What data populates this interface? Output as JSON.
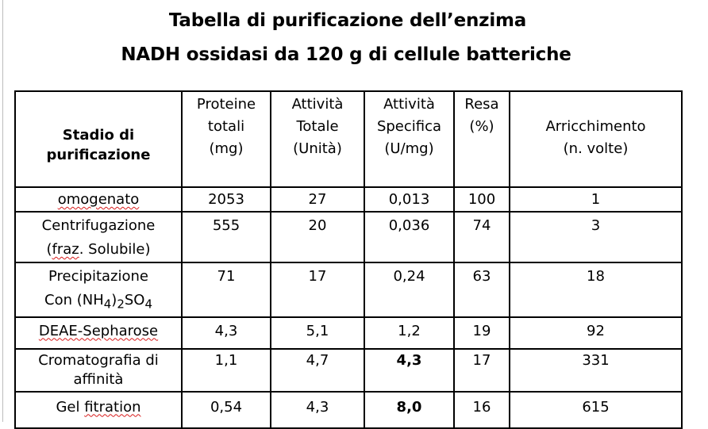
{
  "title_line1": "Tabella di purificazione dell’enzima",
  "title_line2": "NADH ossidasi da 120 g di cellule batteriche",
  "header": {
    "stage_line1": "Stadio di",
    "stage_line2": "purificazione",
    "protein_line1": "Proteine",
    "protein_line2": "totali",
    "protein_line3": "(mg)",
    "activity_line1": "Attività",
    "activity_line2": "Totale",
    "activity_line3": "(Unità)",
    "specific_line1": "Attività",
    "specific_line2": "Specifica",
    "specific_line3": "(U/mg)",
    "yield_line1": "Resa",
    "yield_line2": "(%)",
    "enrich_line1": "Arricchimento",
    "enrich_line2": "(n. volte)"
  },
  "rows": [
    {
      "stage": "omogenato",
      "protein": "2053",
      "activity": "27",
      "specific": "0,013",
      "yield": "100",
      "enrich": "1"
    },
    {
      "stage_line1": "Centrifugazione",
      "stage_line2a": "(",
      "stage_line2b": "fraz",
      "stage_line2c": ". Solubile)",
      "protein": "555",
      "activity": "20",
      "specific": "0,036",
      "yield": "74",
      "enrich": "3"
    },
    {
      "stage_line1": "Precipitazione",
      "stage_line2a": "Con (NH",
      "sub1": "4",
      "stage_line2b": ")",
      "sub2": "2",
      "stage_line2c": "SO",
      "sub3": "4",
      "protein": "71",
      "activity": "17",
      "specific": "0,24",
      "yield": "63",
      "enrich": "18"
    },
    {
      "stage": "DEAE-Sepharose",
      "protein": "4,3",
      "activity": "5,1",
      "specific": "1,2",
      "yield": "19",
      "enrich": "92"
    },
    {
      "stage_line1": "Cromatografia di",
      "stage_line2": "affinità",
      "protein": "1,1",
      "activity": "4,7",
      "specific": "4,3",
      "yield": "17",
      "enrich": "331"
    },
    {
      "stage_a": "Gel ",
      "stage_b": "fitration",
      "protein": "0,54",
      "activity": "4,3",
      "specific": "8,0",
      "yield": "16",
      "enrich": "615"
    }
  ]
}
